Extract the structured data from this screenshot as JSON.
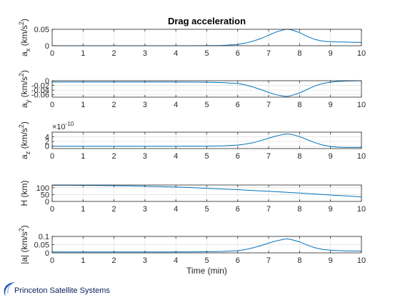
{
  "footer": {
    "brand": "Princeton Satellite Systems",
    "logo": "orbit-swoosh-icon"
  },
  "style": {
    "line_color": "#0072BD",
    "grid_color": "#e3e3e3",
    "axis_color": "#262626"
  },
  "chart_data": [
    {
      "type": "line",
      "title": "Drag acceleration",
      "ylabel": "a_x (km/s^2)",
      "ylabel_main": "a",
      "ylabel_sub": "x",
      "ylabel_unit": " (km/s",
      "ylabel_exp": "2",
      "ylabel_close": ")",
      "xlim": [
        0,
        10
      ],
      "ylim": [
        0,
        0.05
      ],
      "xticks": [
        0,
        1,
        2,
        3,
        4,
        5,
        6,
        7,
        8,
        9,
        10
      ],
      "yticks": [
        0,
        0.05
      ],
      "ytick_labels": [
        "0",
        "0.05"
      ],
      "x": [
        0,
        0.5,
        1,
        1.5,
        2,
        2.5,
        3,
        3.5,
        4,
        4.5,
        5,
        5.5,
        6,
        6.25,
        6.5,
        6.75,
        7,
        7.25,
        7.5,
        7.6,
        7.75,
        8,
        8.25,
        8.5,
        8.75,
        9,
        9.25,
        9.5,
        9.75,
        10
      ],
      "y": [
        0,
        0,
        0,
        0,
        0,
        0,
        0,
        0,
        0,
        0.0001,
        0.0002,
        0.0008,
        0.004,
        0.008,
        0.014,
        0.022,
        0.032,
        0.042,
        0.049,
        0.05,
        0.048,
        0.04,
        0.028,
        0.019,
        0.014,
        0.012,
        0.0115,
        0.011,
        0.0105,
        0.01
      ],
      "grid": true
    },
    {
      "type": "line",
      "title": "",
      "ylabel": "a_y (km/s^2)",
      "ylabel_main": "a",
      "ylabel_sub": "y",
      "ylabel_unit": " (km/s",
      "ylabel_exp": "2",
      "ylabel_close": ")",
      "xlim": [
        0,
        10
      ],
      "ylim": [
        -0.07,
        0
      ],
      "xticks": [
        0,
        1,
        2,
        3,
        4,
        5,
        6,
        7,
        8,
        9,
        10
      ],
      "yticks": [
        0,
        -0.02,
        -0.04,
        -0.06
      ],
      "ytick_labels": [
        "0",
        "-0.02",
        "-0.04",
        "-0.06"
      ],
      "x": [
        0,
        0.5,
        1,
        1.5,
        2,
        2.5,
        3,
        3.5,
        4,
        4.5,
        5,
        5.5,
        6,
        6.25,
        6.5,
        6.75,
        7,
        7.25,
        7.5,
        7.6,
        7.75,
        8,
        8.25,
        8.5,
        8.75,
        9,
        9.25,
        9.5,
        9.75,
        10
      ],
      "y": [
        -0.0055,
        -0.0055,
        -0.0055,
        -0.0055,
        -0.0055,
        -0.0055,
        -0.0055,
        -0.0056,
        -0.0057,
        -0.006,
        -0.0065,
        -0.008,
        -0.012,
        -0.018,
        -0.027,
        -0.038,
        -0.05,
        -0.06,
        -0.0665,
        -0.067,
        -0.063,
        -0.052,
        -0.037,
        -0.022,
        -0.012,
        -0.006,
        -0.003,
        -0.0015,
        -0.0006,
        0
      ],
      "grid": true
    },
    {
      "type": "line",
      "title": "",
      "ylabel": "a_z (km/s^2)",
      "ylabel_main": "a",
      "ylabel_sub": "z",
      "ylabel_unit": " (km/s",
      "ylabel_exp": "2",
      "ylabel_close": ")",
      "exponent_base": "×10",
      "exponent_power": "-10",
      "xlim": [
        0,
        10
      ],
      "ylim": [
        -1,
        6
      ],
      "xticks": [
        0,
        1,
        2,
        3,
        4,
        5,
        6,
        7,
        8,
        9,
        10
      ],
      "yticks": [
        0,
        2,
        4
      ],
      "ytick_labels": [
        "0",
        "2",
        "4"
      ],
      "x": [
        0,
        0.5,
        1,
        1.5,
        2,
        2.5,
        3,
        3.5,
        4,
        4.5,
        5,
        5.5,
        6,
        6.25,
        6.5,
        6.75,
        7,
        7.25,
        7.5,
        7.6,
        7.75,
        8,
        8.25,
        8.5,
        8.75,
        9,
        9.25,
        9.5,
        9.75,
        10
      ],
      "y": [
        0,
        0,
        0,
        0,
        0,
        0,
        0,
        0,
        0,
        0.02,
        0.05,
        0.15,
        0.5,
        0.9,
        1.5,
        2.4,
        3.4,
        4.4,
        5.1,
        5.2,
        5.0,
        4.1,
        2.8,
        1.5,
        0.5,
        -0.1,
        -0.4,
        -0.5,
        -0.5,
        -0.45
      ],
      "grid": true
    },
    {
      "type": "line",
      "title": "",
      "ylabel": "H (km)",
      "ylabel_main": "H (km)",
      "ylabel_sub": "",
      "ylabel_unit": "",
      "ylabel_exp": "",
      "ylabel_close": "",
      "xlim": [
        0,
        10
      ],
      "ylim": [
        0,
        120
      ],
      "xticks": [
        0,
        1,
        2,
        3,
        4,
        5,
        6,
        7,
        8,
        9,
        10
      ],
      "yticks": [
        0,
        50,
        100
      ],
      "ytick_labels": [
        "0",
        "50",
        "100"
      ],
      "x": [
        0,
        0.5,
        1,
        1.5,
        2,
        2.5,
        3,
        3.5,
        4,
        4.5,
        5,
        5.5,
        6,
        6.5,
        7,
        7.5,
        8,
        8.5,
        9,
        9.5,
        10
      ],
      "y": [
        118,
        117.8,
        117.3,
        116.3,
        115,
        113.3,
        111,
        108.4,
        105,
        101,
        96,
        91,
        86,
        80,
        74,
        68,
        61,
        54,
        47,
        40,
        33
      ],
      "grid": true
    },
    {
      "type": "line",
      "title": "",
      "ylabel": "|a| (km/s^2)",
      "ylabel_main": "|a| (km/s",
      "ylabel_sub": "",
      "ylabel_unit": "",
      "ylabel_exp": "2",
      "ylabel_close": ")",
      "xlabel": "Time (min)",
      "xlim": [
        0,
        10
      ],
      "ylim": [
        0,
        0.1
      ],
      "xticks": [
        0,
        1,
        2,
        3,
        4,
        5,
        6,
        7,
        8,
        9,
        10
      ],
      "yticks": [
        0,
        0.05,
        0.1
      ],
      "ytick_labels": [
        "0",
        "0.05",
        "0.1"
      ],
      "x": [
        0,
        0.5,
        1,
        1.5,
        2,
        2.5,
        3,
        3.5,
        4,
        4.5,
        5,
        5.5,
        6,
        6.25,
        6.5,
        6.75,
        7,
        7.25,
        7.5,
        7.6,
        7.75,
        8,
        8.25,
        8.5,
        8.75,
        9,
        9.25,
        9.5,
        9.75,
        10
      ],
      "y": [
        0.0055,
        0.0055,
        0.0055,
        0.0055,
        0.0055,
        0.0055,
        0.0055,
        0.0056,
        0.0057,
        0.006,
        0.0068,
        0.0085,
        0.013,
        0.02,
        0.031,
        0.044,
        0.059,
        0.073,
        0.083,
        0.085,
        0.08,
        0.067,
        0.047,
        0.031,
        0.021,
        0.016,
        0.0135,
        0.012,
        0.0112,
        0.011
      ],
      "grid": true
    }
  ]
}
